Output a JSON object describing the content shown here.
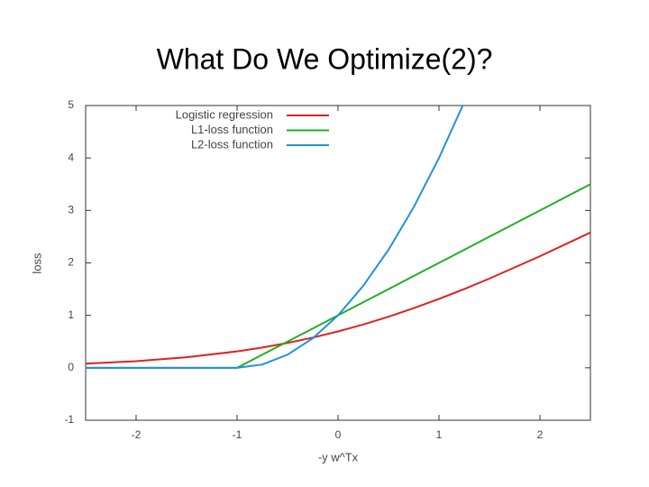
{
  "chart_data": {
    "type": "line",
    "title": "What Do We Optimize(2)?",
    "x_label": "-y w^Tx",
    "y_label": "loss",
    "x": [
      -2.5,
      -2,
      -1.5,
      -1,
      -0.75,
      -0.5,
      -0.25,
      0,
      0.25,
      0.5,
      0.75,
      1,
      1.25,
      1.5,
      2,
      2.5
    ],
    "series": [
      {
        "name": "Logistic regression",
        "color": "#e02020",
        "values": [
          0.079,
          0.127,
          0.201,
          0.313,
          0.386,
          0.474,
          0.576,
          0.693,
          0.826,
          0.974,
          1.137,
          1.313,
          1.501,
          1.701,
          2.127,
          2.579
        ]
      },
      {
        "name": "L1-loss function",
        "color": "#20b020",
        "values": [
          0,
          0,
          0,
          0,
          0.25,
          0.5,
          0.75,
          1,
          1.25,
          1.5,
          1.75,
          2,
          2.25,
          2.5,
          3,
          3.5
        ]
      },
      {
        "name": "L2-loss function",
        "color": "#2090e0",
        "values": [
          0,
          0,
          0,
          0,
          0.0625,
          0.25,
          0.5625,
          1,
          1.5625,
          2.25,
          3.0625,
          4,
          5.0625,
          null,
          null,
          null
        ]
      }
    ],
    "xlim": [
      -2.5,
      2.5
    ],
    "ylim": [
      -1,
      5
    ],
    "xticks": [
      -2,
      -1,
      0,
      1,
      2
    ],
    "yticks": [
      -1,
      0,
      1,
      2,
      3,
      4,
      5
    ],
    "grid": false,
    "legend": "top-left"
  }
}
